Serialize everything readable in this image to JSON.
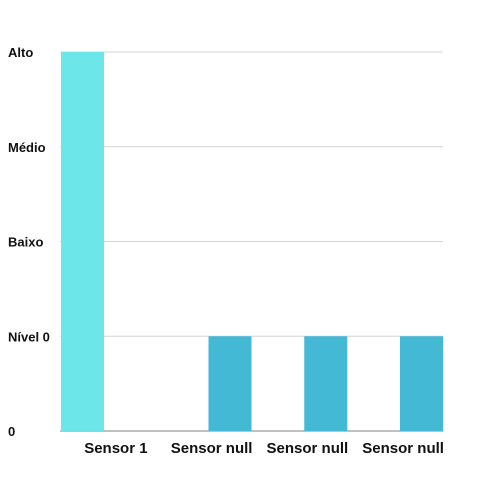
{
  "chart_data": {
    "type": "bar",
    "categories": [
      "Sensor 1",
      "Sensor null",
      "Sensor null",
      "Sensor null"
    ],
    "series": [
      {
        "values": [
          4,
          1,
          1,
          1
        ],
        "colors": [
          "#6de6ea",
          "#43b9d6",
          "#43b9d6",
          "#43b9d6"
        ]
      }
    ],
    "y_ticks": [
      {
        "value": 0,
        "label": "0"
      },
      {
        "value": 1,
        "label": "Nível 0"
      },
      {
        "value": 2,
        "label": "Baixo"
      },
      {
        "value": 3,
        "label": "Médio"
      },
      {
        "value": 4,
        "label": "Alto"
      }
    ],
    "ylim": [
      0,
      4
    ],
    "grid": true,
    "title": "",
    "xlabel": "",
    "ylabel": ""
  }
}
